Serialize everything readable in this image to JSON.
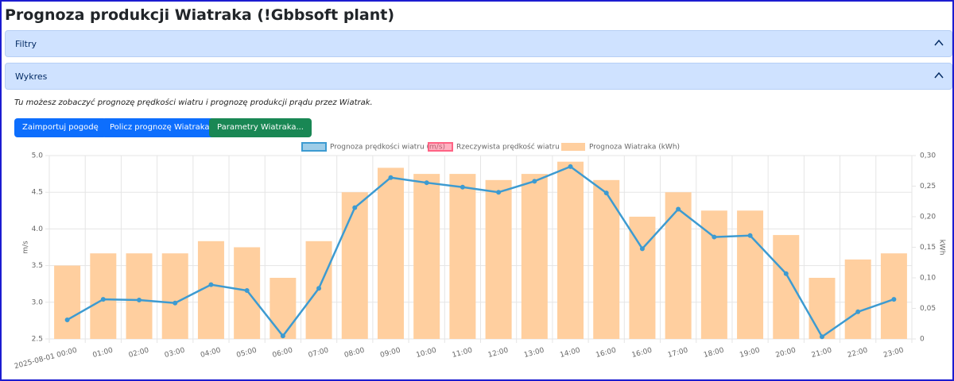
{
  "header": {
    "title": "Prognoza produkcji Wiatraka (!Gbbsoft plant)"
  },
  "accordion": [
    {
      "label": "Filtry"
    },
    {
      "label": "Wykres"
    }
  ],
  "description": "Tu możesz zobaczyć prognozę prędkości wiatru i prognozę produkcji prądu przez Wiatrak.",
  "buttons": [
    {
      "label": "Zaimportuj pogodę"
    },
    {
      "label": "Policz prognozę Wiatraka"
    },
    {
      "label": "Parametry Wiatraka..."
    }
  ],
  "chart_data": {
    "type": "combo",
    "categories": [
      "2025-08-01 00:00",
      "01:00",
      "02:00",
      "03:00",
      "04:00",
      "05:00",
      "06:00",
      "07:00",
      "08:00",
      "09:00",
      "10:00",
      "11:00",
      "12:00",
      "13:00",
      "14:00",
      "16:00",
      "16:00",
      "17:00",
      "18:00",
      "19:00",
      "20:00",
      "21:00",
      "22:00",
      "23:00"
    ],
    "series": [
      {
        "name": "Prognoza prędkości wiatru (m/s)",
        "type": "line",
        "color": "#3d9bd1",
        "axis": "y",
        "values": [
          2.76,
          3.04,
          3.03,
          2.99,
          3.24,
          3.16,
          2.54,
          3.19,
          4.29,
          4.7,
          4.63,
          4.57,
          4.5,
          4.65,
          4.85,
          4.49,
          3.73,
          4.27,
          3.89,
          3.91,
          3.39,
          2.53,
          2.87,
          3.04
        ]
      },
      {
        "name": "Rzeczywista prędkość wiatru (m/s)",
        "type": "line",
        "color": "#ff6384",
        "axis": "y",
        "values": [
          null,
          null,
          null,
          null,
          null,
          null,
          null,
          null,
          null,
          null,
          null,
          null,
          null,
          null,
          null,
          null,
          null,
          null,
          null,
          null,
          null,
          null,
          null,
          null
        ]
      },
      {
        "name": "Prognoza Wiatraka (kWh)",
        "type": "bar",
        "color": "#ffcf9f",
        "axis": "y2",
        "values": [
          0.12,
          0.14,
          0.14,
          0.14,
          0.16,
          0.15,
          0.1,
          0.16,
          0.24,
          0.28,
          0.27,
          0.27,
          0.26,
          0.27,
          0.29,
          0.26,
          0.2,
          0.24,
          0.21,
          0.21,
          0.17,
          0.1,
          0.13,
          0.14
        ]
      }
    ],
    "ylabel": "m/s",
    "y2label": "kWh",
    "ylim": [
      2.5,
      5.0
    ],
    "yticks": [
      2.5,
      {
        "value": 3.0,
        "label": "3.0"
      },
      3.5,
      {
        "value": 4.0,
        "label": "4.0"
      },
      4.5,
      {
        "value": 5.0,
        "label": "5.0"
      }
    ],
    "y2lim": [
      0,
      0.3
    ],
    "y2ticks": [
      0,
      {
        "value": 0.05,
        "label": "0,05"
      },
      {
        "value": 0.1,
        "label": "0,10"
      },
      {
        "value": 0.15,
        "label": "0,15"
      },
      {
        "value": 0.2,
        "label": "0,20"
      },
      {
        "value": 0.25,
        "label": "0,25"
      },
      {
        "value": 0.3,
        "label": "0,30"
      }
    ],
    "grid": true,
    "legend": "top"
  }
}
